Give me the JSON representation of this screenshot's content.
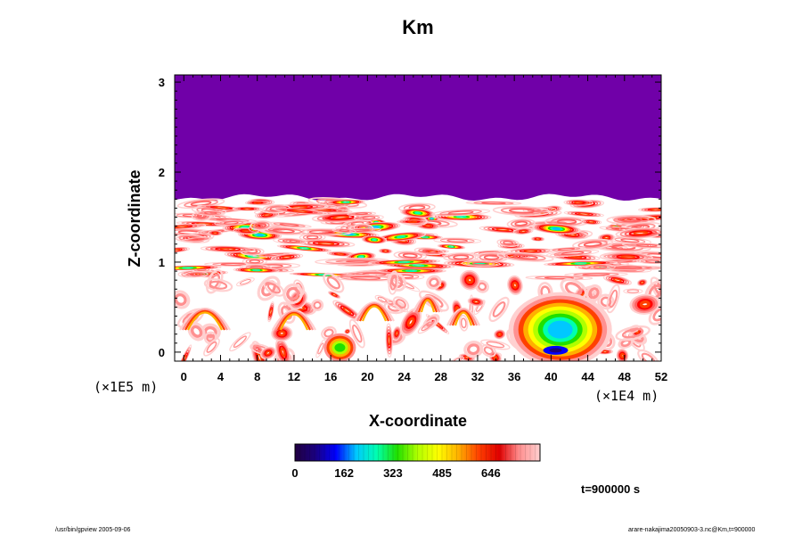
{
  "chart_data": {
    "type": "heatmap",
    "title": "Km",
    "xlabel": "X-coordinate",
    "ylabel": "Z-coordinate",
    "x_scale_note": "(×1E4 m)",
    "y_scale_note": "(×1E5 m)",
    "x_range": [
      -1,
      52
    ],
    "y_range": [
      -0.1,
      3.08
    ],
    "x_ticks": [
      0,
      4,
      8,
      12,
      16,
      20,
      24,
      28,
      32,
      36,
      40,
      44,
      48,
      52
    ],
    "y_ticks": [
      0,
      1,
      2,
      3
    ],
    "x_tick_labels": [
      "0",
      "4",
      "8",
      "12",
      "16",
      "20",
      "24",
      "28",
      "32",
      "36",
      "40",
      "44",
      "48",
      "52"
    ],
    "y_tick_labels": [
      "0",
      "1",
      "2",
      "3"
    ],
    "upper_region": {
      "z_from": 1.72,
      "z_to": 3.08,
      "value": "max",
      "color": "#7000a8"
    },
    "colorbar": {
      "tick_values": [
        0,
        162,
        323,
        485,
        646
      ],
      "tick_labels": [
        "0",
        "162",
        "323",
        "485",
        "646"
      ],
      "range": [
        0,
        808
      ],
      "colors": [
        "#200040",
        "#1a0080",
        "#0000ff",
        "#00c8ff",
        "#00ffb0",
        "#20e000",
        "#b0ff00",
        "#ffff00",
        "#ffb000",
        "#ff4000",
        "#e00000",
        "#ff9090",
        "#ffd0d0"
      ]
    }
  },
  "footer": {
    "time_label": "t=900000 s",
    "left_text": "/usr/bin/gpview 2005-09-06",
    "right_text": "arare-nakajima20050903-3.nc@Km,t=900000"
  }
}
